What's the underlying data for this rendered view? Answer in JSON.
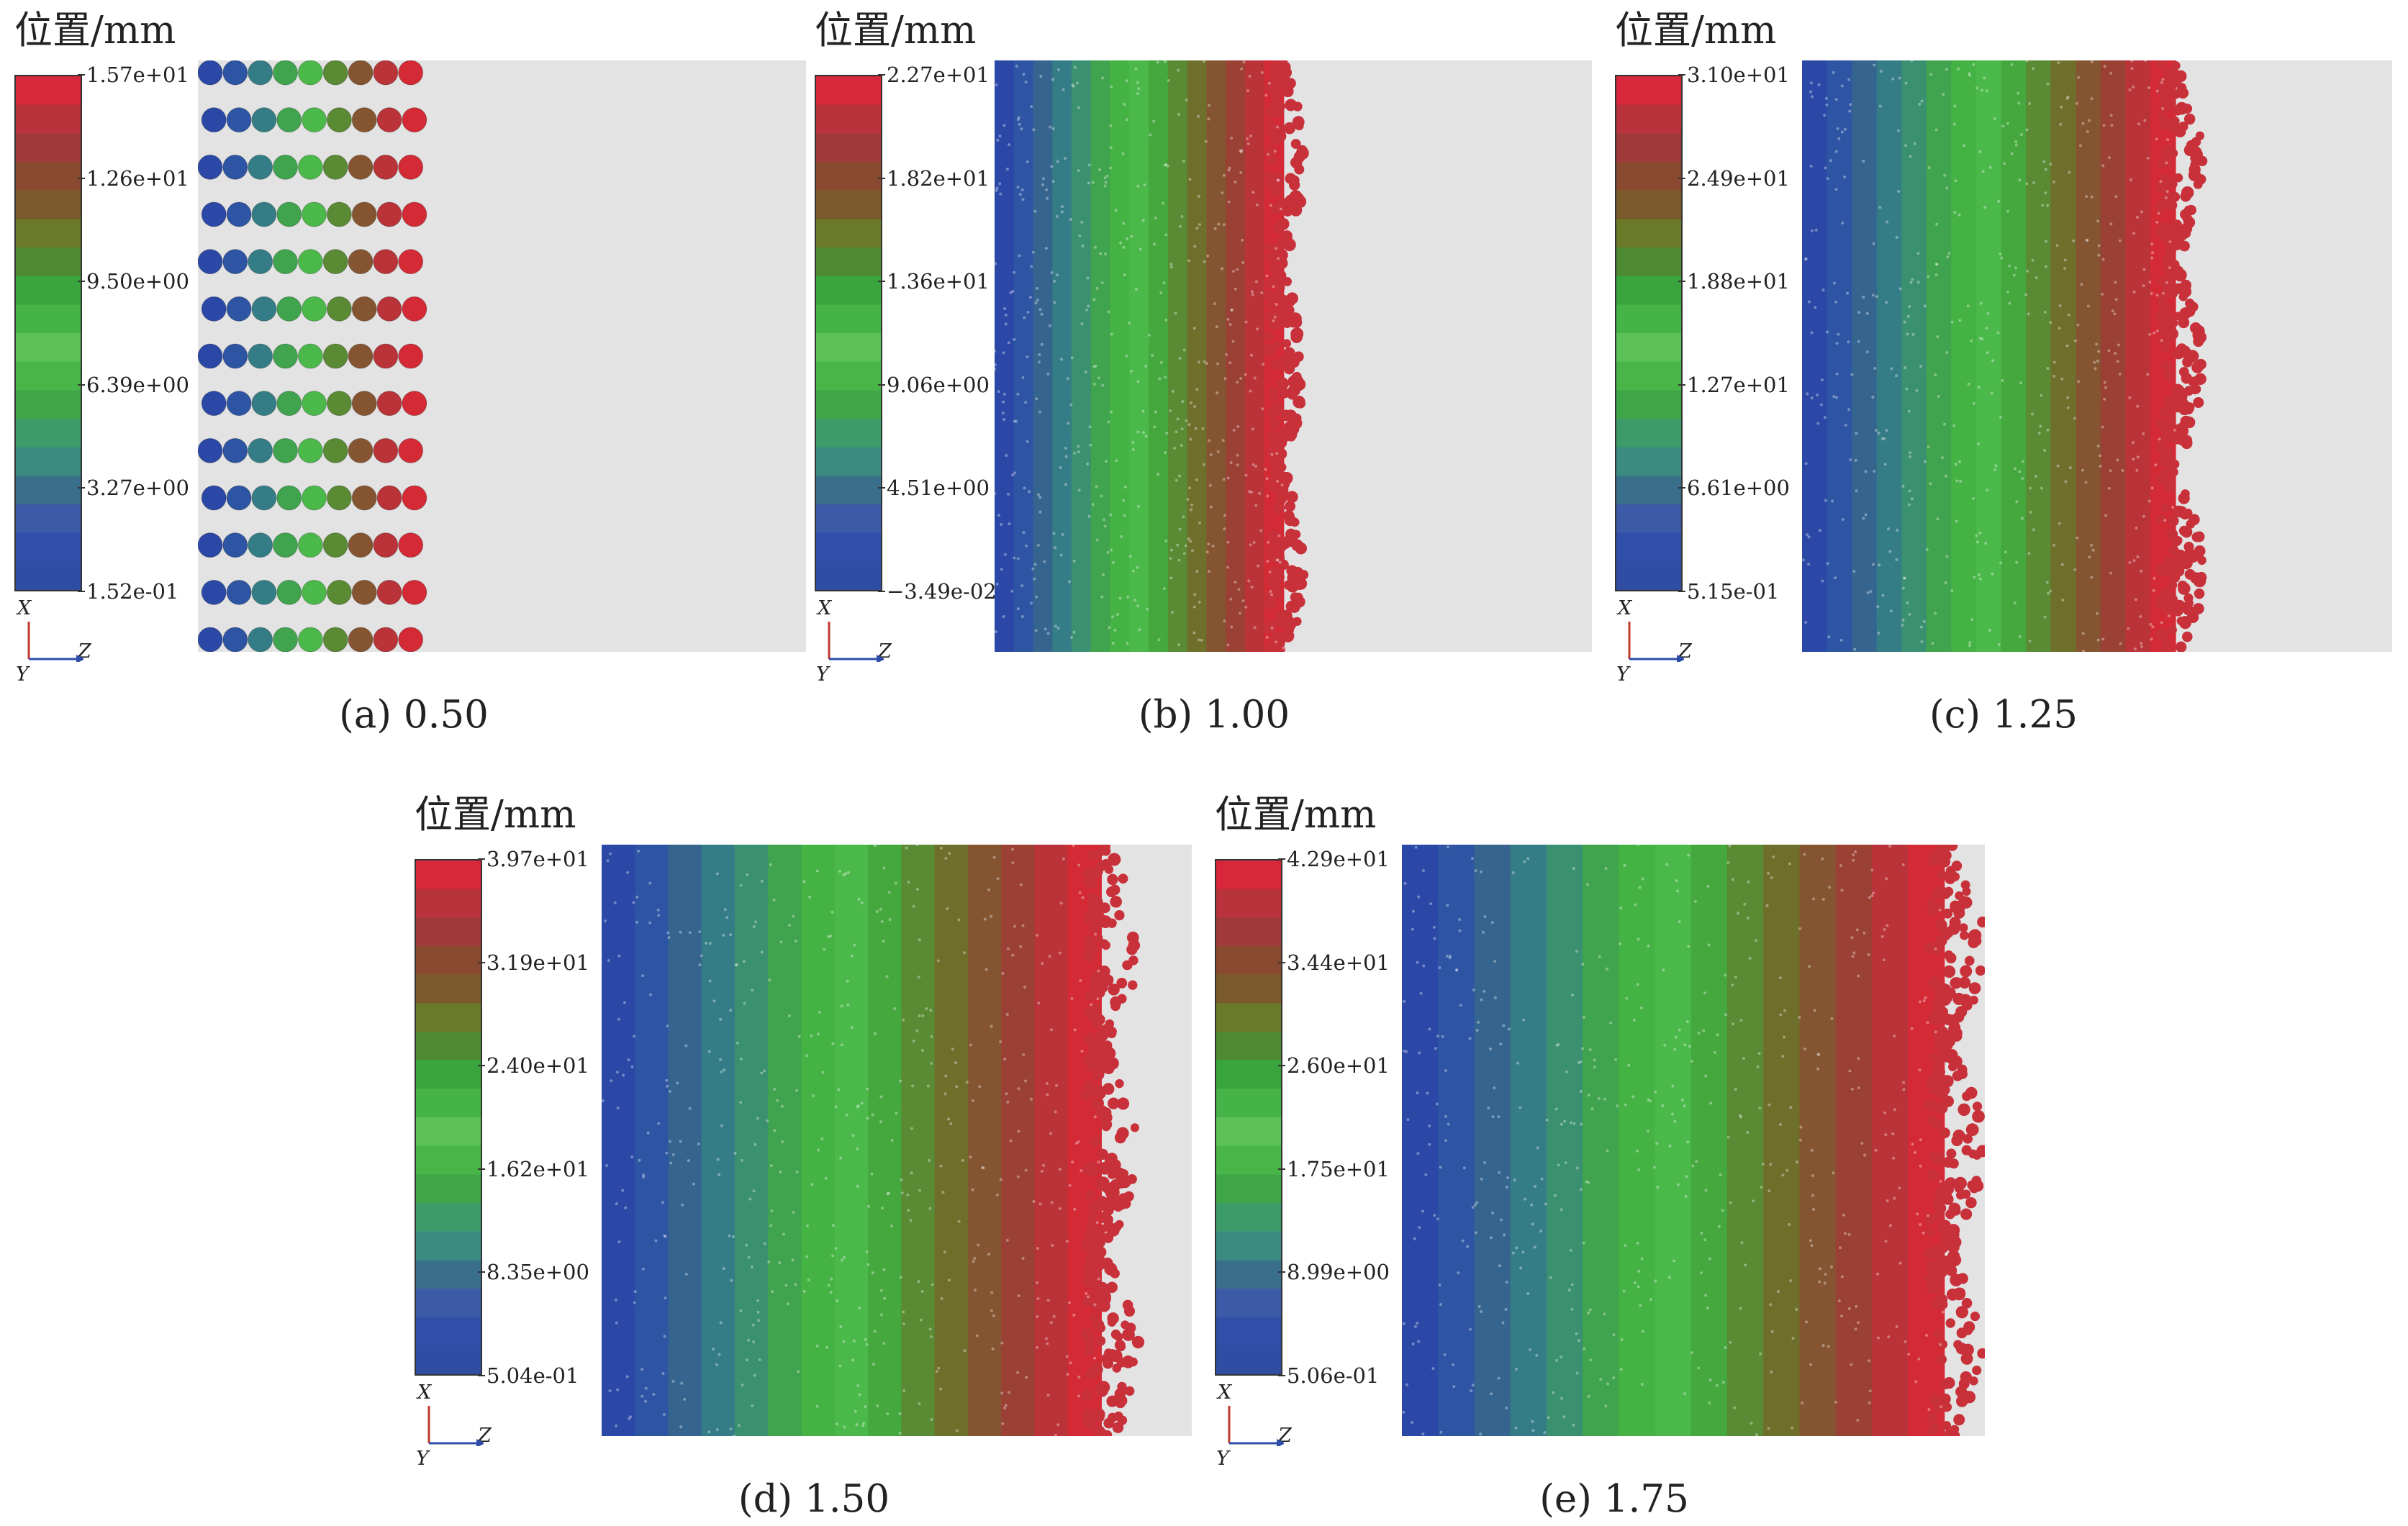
{
  "colorbar_colors": [
    "#2e4da3",
    "#2f4fa8",
    "#3c5aa6",
    "#3a6f8c",
    "#3a8c80",
    "#3d9b6a",
    "#3fa647",
    "#49b548",
    "#5cc258",
    "#45b348",
    "#3aa53c",
    "#4d8a32",
    "#6b7a28",
    "#7a5a2a",
    "#8a4a30",
    "#a0393a",
    "#b8333c",
    "#d8263a"
  ],
  "panels": [
    {
      "title": "位置/mm",
      "ticks": [
        "1.57e+01",
        "1.26e+01",
        "9.50e+00",
        "6.39e+00",
        "3.27e+00",
        "1.52e-01"
      ],
      "caption": "(a) 0.50",
      "axes": {
        "x": "X",
        "z": "Z",
        "y": "Y"
      },
      "fill_fraction": 0.37
    },
    {
      "title": "位置/mm",
      "ticks": [
        "2.27e+01",
        "1.82e+01",
        "1.36e+01",
        "9.06e+00",
        "4.51e+00",
        "−3.49e-02"
      ],
      "caption": "(b) 1.00",
      "axes": {
        "x": "X",
        "z": "Z",
        "y": "Y"
      },
      "fill_fraction": 0.52
    },
    {
      "title": "位置/mm",
      "ticks": [
        "3.10e+01",
        "2.49e+01",
        "1.88e+01",
        "1.27e+01",
        "6.61e+00",
        "5.15e-01"
      ],
      "caption": "(c) 1.25",
      "axes": {
        "x": "X",
        "z": "Z",
        "y": "Y"
      },
      "fill_fraction": 0.68
    },
    {
      "title": "位置/mm",
      "ticks": [
        "3.97e+01",
        "3.19e+01",
        "2.40e+01",
        "1.62e+01",
        "8.35e+00",
        "5.04e-01"
      ],
      "caption": "(d) 1.50",
      "axes": {
        "x": "X",
        "z": "Z",
        "y": "Y"
      },
      "fill_fraction": 0.91
    },
    {
      "title": "位置/mm",
      "ticks": [
        "4.29e+01",
        "3.44e+01",
        "2.60e+01",
        "1.75e+01",
        "8.99e+00",
        "5.06e-01"
      ],
      "caption": "(e) 1.75",
      "axes": {
        "x": "X",
        "z": "Z",
        "y": "Y"
      },
      "fill_fraction": 1.0
    }
  ]
}
